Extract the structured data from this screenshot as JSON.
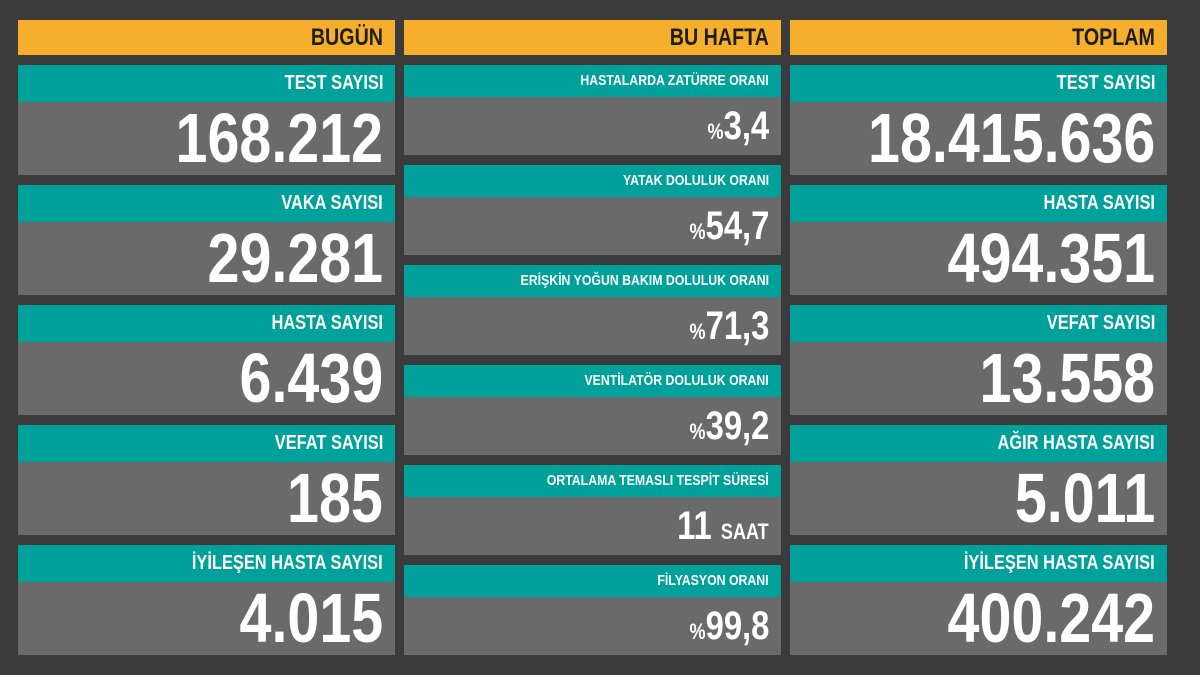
{
  "columns": [
    {
      "title": "BUGÜN",
      "items": [
        {
          "label": "TEST SAYISI",
          "value": "168.212"
        },
        {
          "label": "VAKA SAYISI",
          "value": "29.281"
        },
        {
          "label": "HASTA SAYISI",
          "value": "6.439"
        },
        {
          "label": "VEFAT SAYISI",
          "value": "185"
        },
        {
          "label": "İYİLEŞEN HASTA SAYISI",
          "value": "4.015"
        }
      ]
    },
    {
      "title": "BU HAFTA",
      "items": [
        {
          "label": "HASTALARDA ZATÜRRE ORANI",
          "prefix": "%",
          "value": "3,4"
        },
        {
          "label": "YATAK DOLULUK ORANI",
          "prefix": "%",
          "value": "54,7"
        },
        {
          "label": "ERİŞKİN YOĞUN BAKIM DOLULUK ORANI",
          "prefix": "%",
          "value": "71,3"
        },
        {
          "label": "VENTİLATÖR DOLULUK ORANI",
          "prefix": "%",
          "value": "39,2"
        },
        {
          "label": "ORTALAMA TEMASLI TESPİT SÜRESİ",
          "value": "11",
          "suffix": "SAAT"
        },
        {
          "label": "FİLYASYON ORANI",
          "prefix": "%",
          "value": "99,8"
        }
      ]
    },
    {
      "title": "TOPLAM",
      "items": [
        {
          "label": "TEST SAYISI",
          "value": "18.415.636"
        },
        {
          "label": "HASTA SAYISI",
          "value": "494.351"
        },
        {
          "label": "VEFAT SAYISI",
          "value": "13.558"
        },
        {
          "label": "AĞIR HASTA SAYISI",
          "value": "5.011"
        },
        {
          "label": "İYİLEŞEN HASTA SAYISI",
          "value": "400.242"
        }
      ]
    }
  ]
}
